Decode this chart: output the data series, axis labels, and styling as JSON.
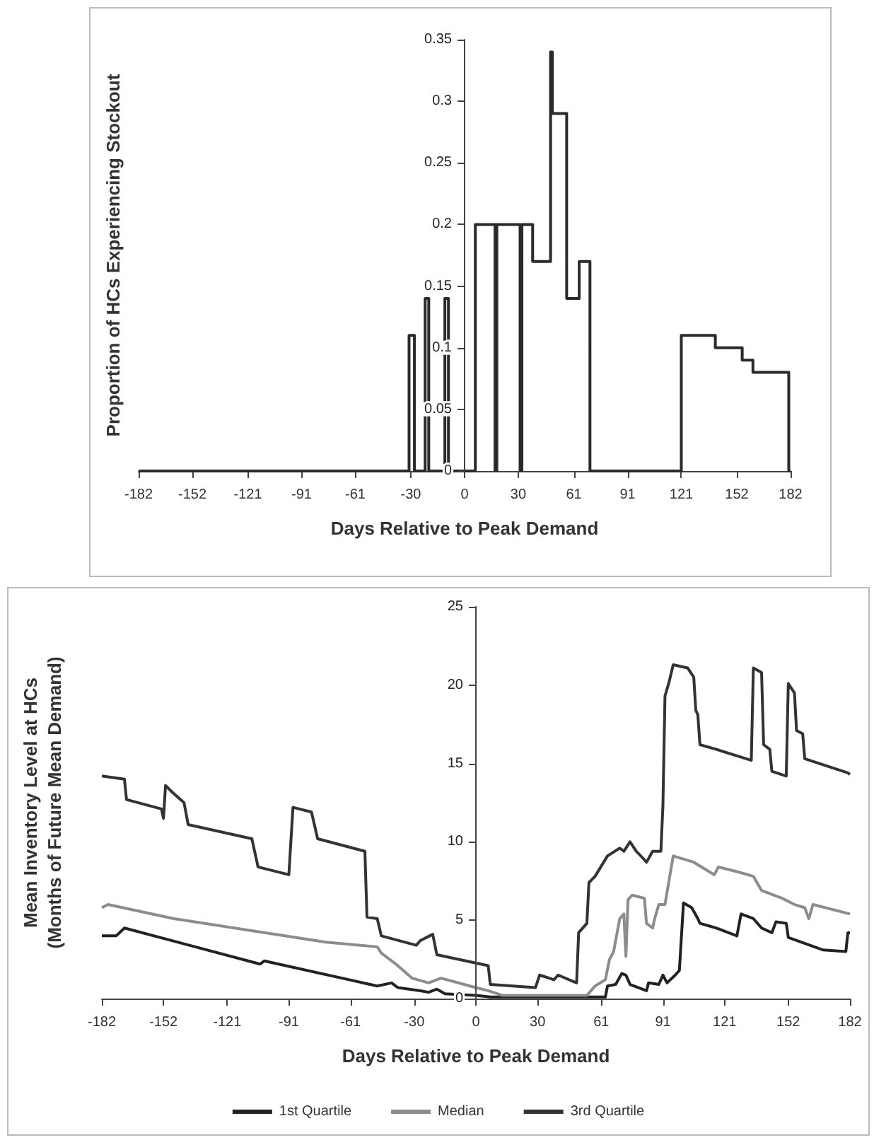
{
  "chart_data": [
    {
      "type": "step",
      "xlabel": "Days Relative to Peak Demand",
      "ylabel": "Proportion of HCs Experiencing Stockout",
      "x": [
        -182,
        -31,
        -28,
        -22,
        -20,
        -11,
        -9,
        6,
        17,
        18,
        31,
        32,
        38,
        48,
        49,
        57,
        64,
        70,
        121,
        140,
        155,
        161,
        181,
        182
      ],
      "values": [
        0,
        0.11,
        0,
        0.14,
        0,
        0.14,
        0,
        0.2,
        0,
        0.2,
        0,
        0.2,
        0.17,
        0.34,
        0.29,
        0.14,
        0.17,
        0,
        0.11,
        0.1,
        0.09,
        0.08,
        0,
        0
      ],
      "color": "#2a2a2a",
      "xlim": [
        -182,
        182
      ],
      "xticks": [
        -182,
        -152,
        -121,
        -91,
        -61,
        -30,
        0,
        30,
        61,
        91,
        121,
        152,
        182
      ],
      "ylim": [
        0,
        0.35
      ],
      "yticks": [
        0,
        0.05,
        0.1,
        0.15,
        0.2,
        0.25,
        0.3,
        0.35
      ]
    },
    {
      "type": "line",
      "xlabel": "Days Relative to Peak Demand",
      "ylabel": "Mean Inventory Level at HCs\n(Months of Future Mean Demand)",
      "legend": "bottom",
      "xlim": [
        -182,
        182
      ],
      "xticks": [
        -182,
        -152,
        -121,
        -91,
        -61,
        -30,
        0,
        30,
        61,
        91,
        121,
        152,
        182
      ],
      "ylim": [
        0,
        25
      ],
      "yticks": [
        0,
        5,
        10,
        15,
        20,
        25
      ],
      "series": [
        {
          "name": "1st Quartile",
          "color": "#222222",
          "x": [
            -182,
            -175,
            -171,
            -105,
            -103,
            -48,
            -41,
            -38,
            -27,
            -23,
            -19,
            -15,
            0,
            7,
            63,
            64,
            68,
            71,
            73,
            75,
            83,
            84,
            89,
            91,
            93,
            97,
            99,
            101,
            105,
            108,
            109,
            117,
            127,
            129,
            135,
            139,
            144,
            146,
            151,
            152,
            169,
            180,
            181,
            182
          ],
          "values": [
            4.0,
            4.0,
            4.5,
            2.2,
            2.4,
            0.8,
            1.0,
            0.7,
            0.5,
            0.4,
            0.6,
            0.3,
            0.2,
            0.1,
            0.1,
            0.8,
            0.9,
            1.6,
            1.5,
            0.9,
            0.5,
            1.0,
            0.9,
            1.5,
            1.0,
            1.5,
            1.8,
            6.1,
            5.8,
            5.1,
            4.8,
            4.5,
            4.0,
            5.4,
            5.1,
            4.5,
            4.2,
            4.9,
            4.8,
            3.9,
            3.1,
            3.0,
            4.2,
            4.2
          ]
        },
        {
          "name": "Median",
          "color": "#8c8c8c",
          "x": [
            -182,
            -179,
            -147,
            -73,
            -48,
            -46,
            -38,
            -31,
            -23,
            -17,
            0,
            6,
            13,
            54,
            58,
            63,
            65,
            67,
            70,
            72,
            73,
            74,
            76,
            82,
            83,
            86,
            87,
            89,
            92,
            96,
            106,
            116,
            118,
            127,
            135,
            139,
            149,
            155,
            160,
            162,
            164,
            182
          ],
          "values": [
            5.8,
            6.0,
            5.1,
            3.6,
            3.3,
            2.9,
            2.1,
            1.3,
            1.0,
            1.3,
            0.7,
            0.5,
            0.2,
            0.2,
            0.8,
            1.2,
            2.5,
            3.0,
            5.1,
            5.4,
            2.7,
            6.3,
            6.6,
            6.4,
            4.8,
            4.5,
            5.1,
            6.0,
            6.0,
            9.1,
            8.7,
            7.9,
            8.4,
            8.1,
            7.8,
            6.9,
            6.4,
            6.0,
            5.8,
            5.1,
            6.0,
            5.4
          ]
        },
        {
          "name": "3rd Quartile",
          "color": "#333333",
          "x": [
            -182,
            -171,
            -170,
            -153,
            -152,
            -151,
            -148,
            -142,
            -140,
            -109,
            -106,
            -91,
            -89,
            -80,
            -77,
            -54,
            -53,
            -48,
            -46,
            -29,
            -27,
            -21,
            -19,
            6,
            7,
            29,
            31,
            38,
            40,
            49,
            50,
            54,
            55,
            58,
            64,
            70,
            72,
            75,
            78,
            81,
            83,
            86,
            90,
            91,
            92,
            94,
            96,
            103,
            106,
            107,
            108,
            109,
            117,
            134,
            135,
            139,
            140,
            143,
            144,
            151,
            152,
            155,
            156,
            159,
            160,
            181,
            182
          ],
          "values": [
            14.2,
            14.0,
            12.7,
            12.1,
            11.5,
            13.6,
            13.2,
            12.5,
            11.1,
            10.2,
            8.4,
            7.9,
            12.2,
            11.9,
            10.2,
            9.4,
            5.2,
            5.1,
            4.0,
            3.4,
            3.7,
            4.1,
            2.8,
            2.1,
            0.9,
            0.7,
            1.5,
            1.2,
            1.5,
            1.0,
            4.2,
            4.8,
            7.4,
            7.8,
            9.1,
            9.6,
            9.4,
            10.0,
            9.4,
            9.0,
            8.7,
            9.4,
            9.4,
            12.3,
            19.3,
            20.2,
            21.3,
            21.1,
            20.5,
            18.4,
            18.1,
            16.2,
            15.9,
            15.2,
            21.1,
            20.8,
            16.2,
            15.9,
            14.5,
            14.2,
            20.1,
            19.5,
            17.1,
            16.9,
            15.3,
            14.4,
            14.3
          ]
        }
      ]
    }
  ]
}
